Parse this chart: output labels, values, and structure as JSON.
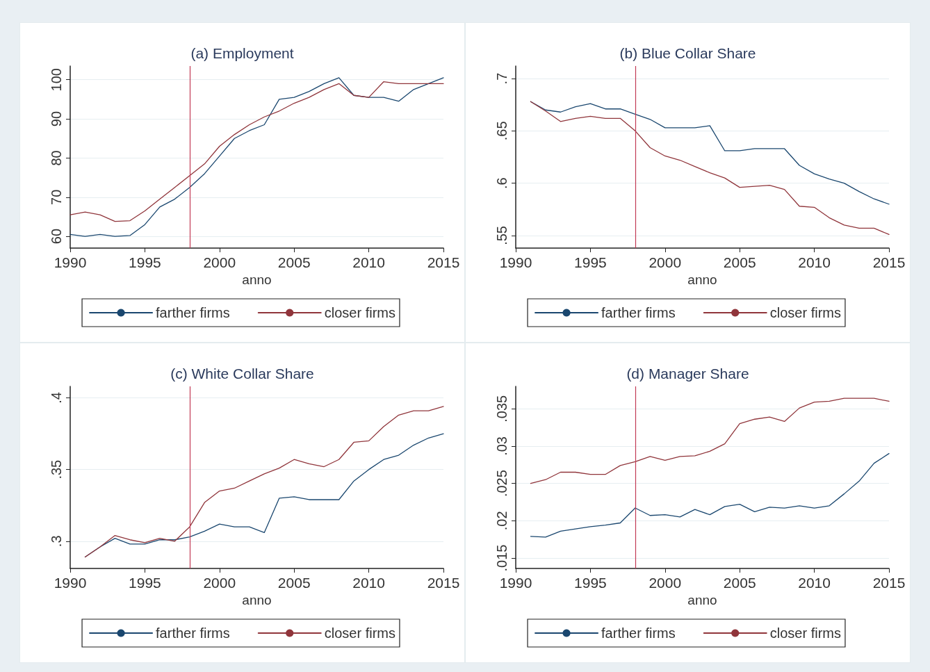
{
  "chart_data": [
    {
      "type": "line",
      "title": "(a) Employment",
      "xlabel": "anno",
      "xlim": [
        1990,
        2015
      ],
      "xticks": [
        1990,
        1995,
        2000,
        2005,
        2010,
        2015
      ],
      "ylim": [
        57,
        103.5
      ],
      "yticks": [
        60,
        70,
        80,
        90,
        100
      ],
      "grid": "y",
      "legend": "bottom",
      "x": [
        1990,
        1991,
        1992,
        1993,
        1994,
        1995,
        1996,
        1997,
        1998,
        1999,
        2000,
        2001,
        2002,
        2003,
        2004,
        2005,
        2006,
        2007,
        2008,
        2009,
        2010,
        2011,
        2012,
        2013,
        2014,
        2015
      ],
      "series": [
        {
          "name": "farther firms",
          "color": "#1a476f",
          "values": [
            60.5,
            60,
            60.5,
            60,
            60.2,
            63,
            67.5,
            69.5,
            72.5,
            76,
            80.5,
            85,
            87,
            88.5,
            95,
            95.5,
            97,
            99,
            100.5,
            96,
            95.5,
            95.5,
            94.5,
            97.5,
            99,
            100.5
          ]
        },
        {
          "name": "closer firms",
          "color": "#90353b",
          "values": [
            65.5,
            66.2,
            65.5,
            63.8,
            64,
            66.5,
            69.5,
            72.5,
            75.5,
            78.5,
            83,
            86,
            88.5,
            90.5,
            92,
            94,
            95.5,
            97.5,
            99,
            96,
            95.5,
            99.5,
            99,
            99,
            99,
            99
          ]
        }
      ],
      "ref_lines": [
        {
          "axis": "x",
          "value": 1998,
          "color": "#c23a55"
        }
      ]
    },
    {
      "type": "line",
      "title": "(b) Blue Collar Share",
      "xlabel": "anno",
      "xlim": [
        1990,
        2015
      ],
      "xticks": [
        1990,
        1995,
        2000,
        2005,
        2010,
        2015
      ],
      "ylim": [
        0.538,
        0.712
      ],
      "yticks": [
        {
          "value": 0.55,
          "label": ".55"
        },
        {
          "value": 0.6,
          "label": ".6"
        },
        {
          "value": 0.65,
          "label": ".65"
        },
        {
          "value": 0.7,
          "label": ".7"
        }
      ],
      "grid": "y",
      "legend": "bottom",
      "x": [
        1991,
        1992,
        1993,
        1994,
        1995,
        1996,
        1997,
        1998,
        1999,
        2000,
        2001,
        2002,
        2003,
        2004,
        2005,
        2006,
        2007,
        2008,
        2009,
        2010,
        2011,
        2012,
        2013,
        2014,
        2015
      ],
      "series": [
        {
          "name": "farther firms",
          "color": "#1a476f",
          "values": [
            0.678,
            0.67,
            0.668,
            0.673,
            0.676,
            0.671,
            0.671,
            0.666,
            0.661,
            0.653,
            0.653,
            0.653,
            0.655,
            0.631,
            0.631,
            0.633,
            0.633,
            0.633,
            0.617,
            0.609,
            0.604,
            0.6,
            0.592,
            0.585,
            0.58
          ]
        },
        {
          "name": "closer firms",
          "color": "#90353b",
          "values": [
            0.678,
            0.669,
            0.659,
            0.662,
            0.664,
            0.662,
            0.662,
            0.65,
            0.634,
            0.626,
            0.622,
            0.616,
            0.61,
            0.605,
            0.596,
            0.597,
            0.598,
            0.594,
            0.578,
            0.577,
            0.567,
            0.56,
            0.557,
            0.557,
            0.551
          ]
        }
      ],
      "ref_lines": [
        {
          "axis": "x",
          "value": 1998,
          "color": "#c23a55"
        }
      ]
    },
    {
      "type": "line",
      "title": "(c) White Collar Share",
      "xlabel": "anno",
      "xlim": [
        1990,
        2015
      ],
      "xticks": [
        1990,
        1995,
        2000,
        2005,
        2010,
        2015
      ],
      "ylim": [
        0.281,
        0.408
      ],
      "yticks": [
        {
          "value": 0.3,
          "label": ".3"
        },
        {
          "value": 0.35,
          "label": ".35"
        },
        {
          "value": 0.4,
          "label": ".4"
        }
      ],
      "grid": "y",
      "legend": "bottom",
      "x": [
        1991,
        1992,
        1993,
        1994,
        1995,
        1996,
        1997,
        1998,
        1999,
        2000,
        2001,
        2002,
        2003,
        2004,
        2005,
        2006,
        2007,
        2008,
        2009,
        2010,
        2011,
        2012,
        2013,
        2014,
        2015
      ],
      "series": [
        {
          "name": "farther firms",
          "color": "#1a476f",
          "values": [
            0.289,
            0.296,
            0.302,
            0.298,
            0.298,
            0.301,
            0.301,
            0.303,
            0.307,
            0.312,
            0.31,
            0.31,
            0.306,
            0.33,
            0.331,
            0.329,
            0.329,
            0.329,
            0.342,
            0.35,
            0.357,
            0.36,
            0.367,
            0.372,
            0.375
          ]
        },
        {
          "name": "closer firms",
          "color": "#90353b",
          "values": [
            0.289,
            0.296,
            0.304,
            0.301,
            0.299,
            0.302,
            0.3,
            0.31,
            0.327,
            0.335,
            0.337,
            0.342,
            0.347,
            0.351,
            0.357,
            0.354,
            0.352,
            0.357,
            0.369,
            0.37,
            0.38,
            0.388,
            0.391,
            0.391,
            0.394
          ]
        }
      ],
      "ref_lines": [
        {
          "axis": "x",
          "value": 1998,
          "color": "#c23a55"
        }
      ]
    },
    {
      "type": "line",
      "title": "(d) Manager Share",
      "xlabel": "anno",
      "xlim": [
        1990,
        2015
      ],
      "xticks": [
        1990,
        1995,
        2000,
        2005,
        2010,
        2015
      ],
      "ylim": [
        0.0136,
        0.038
      ],
      "yticks": [
        {
          "value": 0.015,
          "label": ".015"
        },
        {
          "value": 0.02,
          "label": ".02"
        },
        {
          "value": 0.025,
          "label": ".025"
        },
        {
          "value": 0.03,
          "label": ".03"
        },
        {
          "value": 0.035,
          "label": ".035"
        }
      ],
      "grid": "y",
      "legend": "bottom",
      "x": [
        1991,
        1992,
        1993,
        1994,
        1995,
        1996,
        1997,
        1998,
        1999,
        2000,
        2001,
        2002,
        2003,
        2004,
        2005,
        2006,
        2007,
        2008,
        2009,
        2010,
        2011,
        2012,
        2013,
        2014,
        2015
      ],
      "series": [
        {
          "name": "farther firms",
          "color": "#1a476f",
          "values": [
            0.0179,
            0.0178,
            0.0186,
            0.0189,
            0.0192,
            0.0194,
            0.0197,
            0.0217,
            0.0207,
            0.0208,
            0.0205,
            0.0215,
            0.0208,
            0.0219,
            0.0222,
            0.0212,
            0.0218,
            0.0217,
            0.022,
            0.0217,
            0.022,
            0.0236,
            0.0253,
            0.0277,
            0.029
          ]
        },
        {
          "name": "closer firms",
          "color": "#90353b",
          "values": [
            0.025,
            0.0255,
            0.0265,
            0.0265,
            0.0262,
            0.0262,
            0.0274,
            0.0279,
            0.0286,
            0.0281,
            0.0286,
            0.0287,
            0.0293,
            0.0303,
            0.033,
            0.0336,
            0.0339,
            0.0333,
            0.0351,
            0.0359,
            0.036,
            0.0364,
            0.0364,
            0.0364,
            0.036
          ]
        }
      ],
      "ref_lines": [
        {
          "axis": "x",
          "value": 1998,
          "color": "#c23a55"
        }
      ]
    }
  ]
}
